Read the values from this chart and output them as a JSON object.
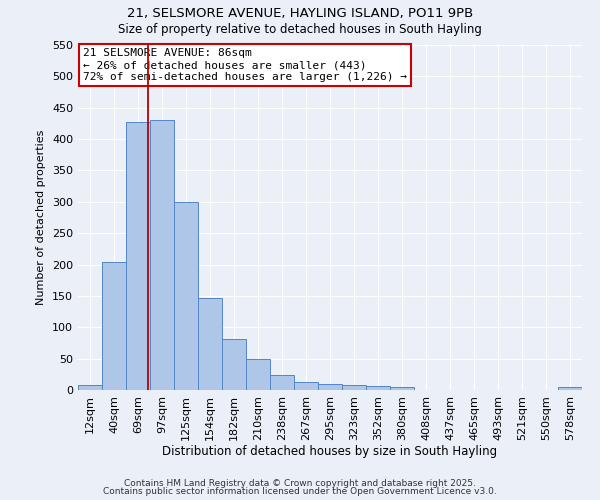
{
  "title1": "21, SELSMORE AVENUE, HAYLING ISLAND, PO11 9PB",
  "title2": "Size of property relative to detached houses in South Hayling",
  "xlabel": "Distribution of detached houses by size in South Hayling",
  "ylabel": "Number of detached properties",
  "categories": [
    "12sqm",
    "40sqm",
    "69sqm",
    "97sqm",
    "125sqm",
    "154sqm",
    "182sqm",
    "210sqm",
    "238sqm",
    "267sqm",
    "295sqm",
    "323sqm",
    "352sqm",
    "380sqm",
    "408sqm",
    "437sqm",
    "465sqm",
    "493sqm",
    "521sqm",
    "550sqm",
    "578sqm"
  ],
  "values": [
    8,
    204,
    428,
    430,
    300,
    147,
    81,
    50,
    24,
    12,
    10,
    8,
    6,
    5,
    0,
    0,
    0,
    0,
    0,
    0,
    5
  ],
  "bar_color": "#aec6e8",
  "bar_edge_color": "#5585c5",
  "background_color": "#eaeff8",
  "grid_color": "#ffffff",
  "annotation_text": "21 SELSMORE AVENUE: 86sqm\n← 26% of detached houses are smaller (443)\n72% of semi-detached houses are larger (1,226) →",
  "annotation_box_color": "#ffffff",
  "annotation_box_edge": "#cc0000",
  "red_line_index": 2,
  "ylim": [
    0,
    550
  ],
  "yticks": [
    0,
    50,
    100,
    150,
    200,
    250,
    300,
    350,
    400,
    450,
    500,
    550
  ],
  "footer1": "Contains HM Land Registry data © Crown copyright and database right 2025.",
  "footer2": "Contains public sector information licensed under the Open Government Licence v3.0."
}
